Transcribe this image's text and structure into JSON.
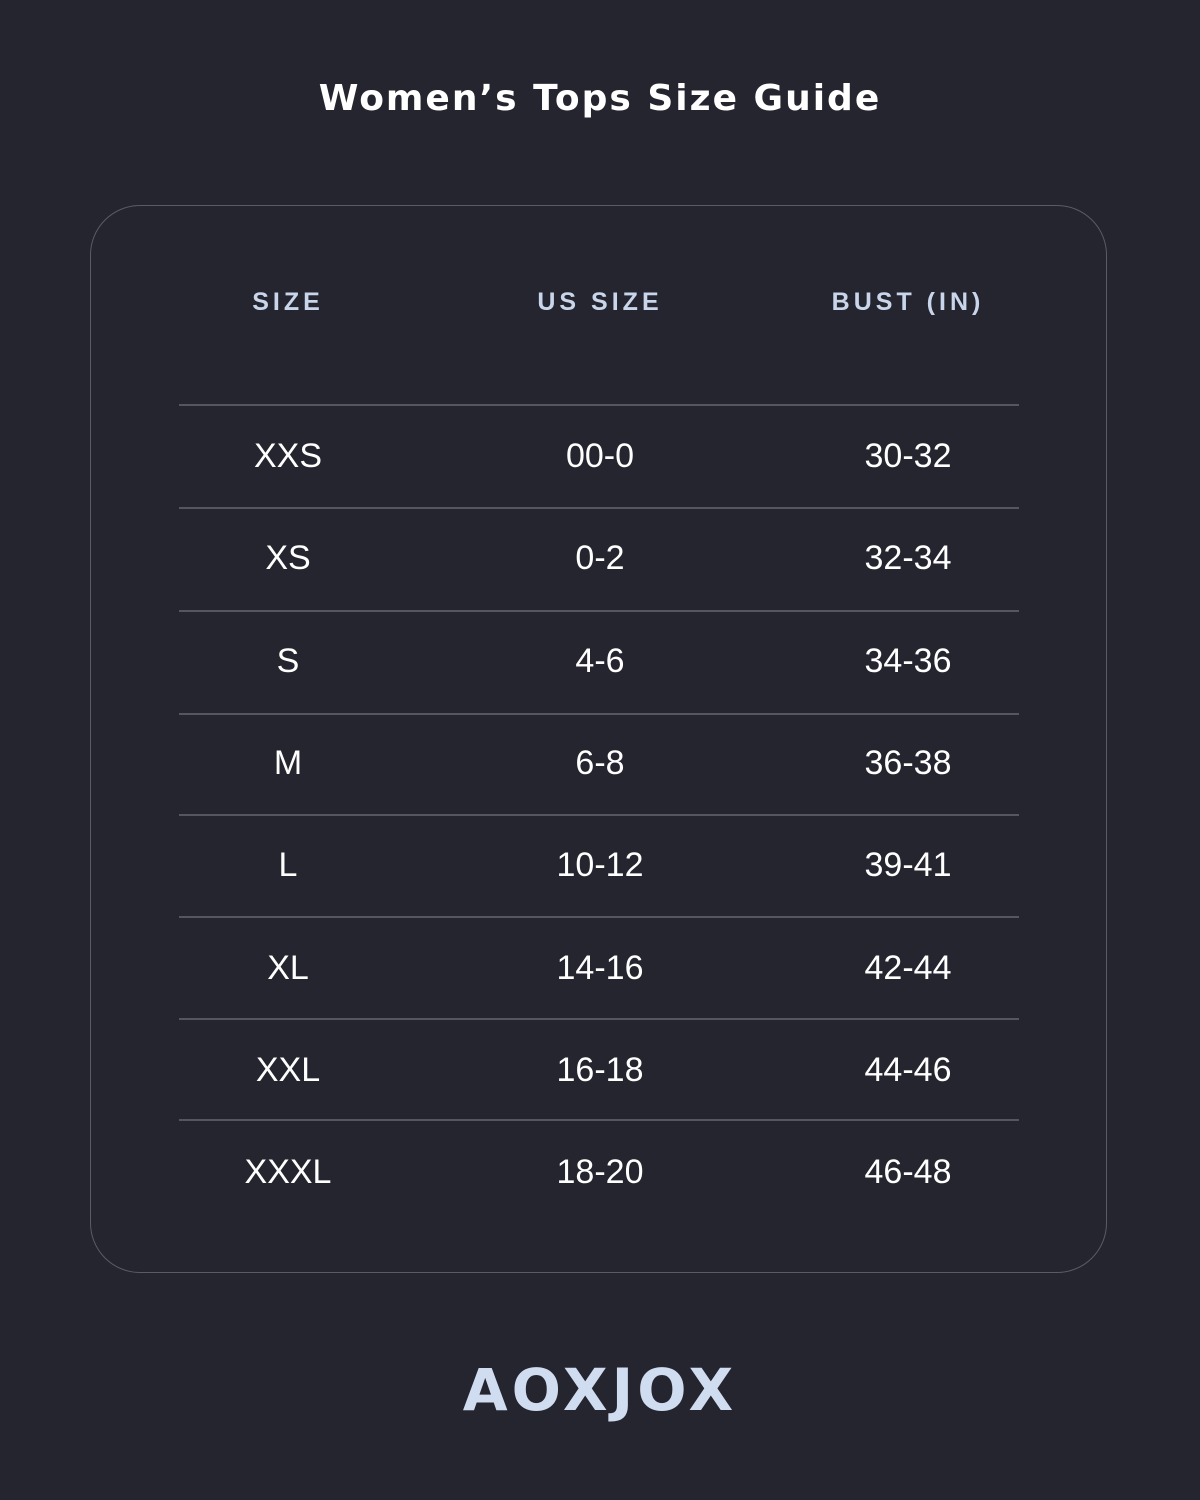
{
  "title": "Women’s Tops Size Guide",
  "table": {
    "headers": [
      "SIZE",
      "US SIZE",
      "BUST (IN)"
    ],
    "rows": [
      [
        "XXS",
        "00-0",
        "30-32"
      ],
      [
        "XS",
        "0-2",
        "32-34"
      ],
      [
        "S",
        "4-6",
        "34-36"
      ],
      [
        "M",
        "6-8",
        "36-38"
      ],
      [
        "L",
        "10-12",
        "39-41"
      ],
      [
        "XL",
        "14-16",
        "42-44"
      ],
      [
        "XXL",
        "16-18",
        "44-46"
      ],
      [
        "XXXL",
        "18-20",
        "46-48"
      ]
    ]
  },
  "brand": {
    "logo_text": "AOXJOX",
    "color": "#d0dcf0"
  },
  "colors": {
    "background": "#24252e",
    "header": "#c9d5ea",
    "border": "#5a5b63"
  }
}
